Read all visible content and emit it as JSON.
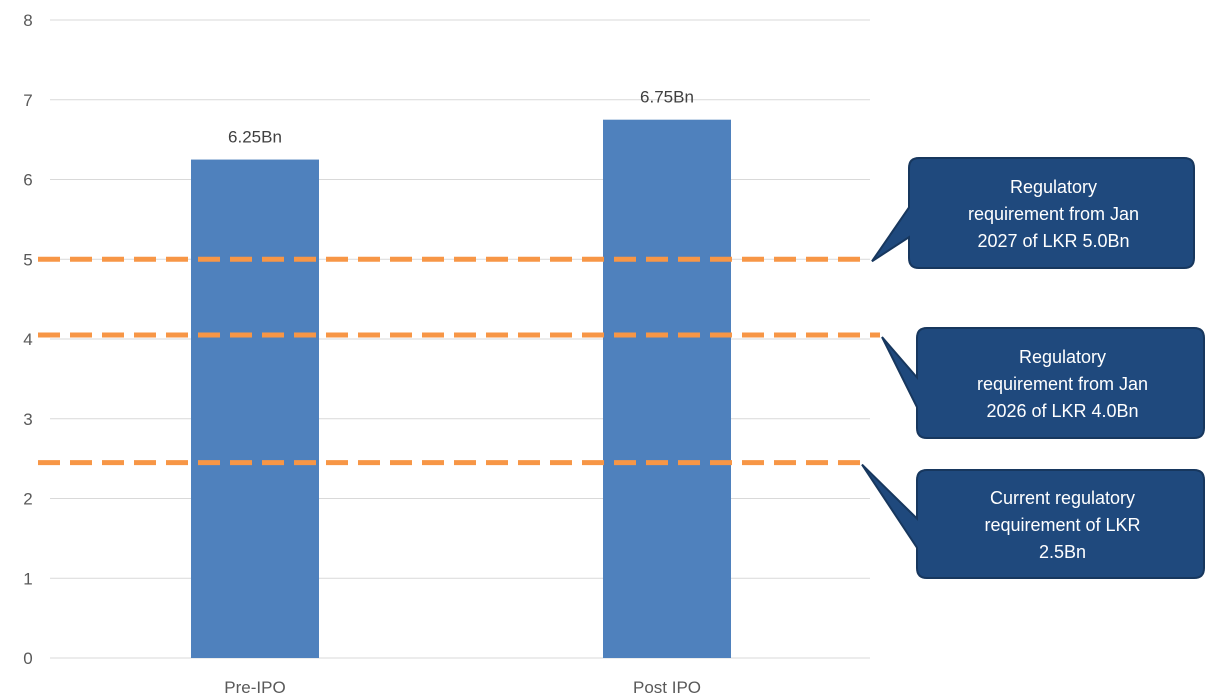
{
  "chart_data": {
    "type": "bar",
    "title": "",
    "xlabel": "",
    "ylabel": "",
    "categories": [
      "Pre-IPO",
      "Post IPO"
    ],
    "values": [
      6.25,
      6.75
    ],
    "data_labels": [
      "6.25Bn",
      "6.75Bn"
    ],
    "ylim": [
      0,
      8
    ],
    "yticks": [
      0,
      1,
      2,
      3,
      4,
      5,
      6,
      7,
      8
    ],
    "grid": true,
    "legend": "none",
    "reference_lines": [
      {
        "value": 5.0,
        "style": "dashed",
        "callout": [
          "Regulatory",
          "requirement from Jan",
          "2027 of LKR 5.0Bn"
        ]
      },
      {
        "value": 4.05,
        "style": "dashed",
        "callout": [
          "Regulatory",
          "requirement from Jan",
          "2026 of LKR 4.0Bn"
        ]
      },
      {
        "value": 2.45,
        "style": "dashed",
        "callout": [
          "Current regulatory",
          "requirement of LKR",
          "2.5Bn"
        ]
      }
    ],
    "colors": {
      "bar": "#4f81bd",
      "reference_line": "#f79646",
      "callout_fill": "#1f497d",
      "callout_border": "#17375e",
      "grid": "#d9d9d9",
      "text": "#595959"
    }
  }
}
